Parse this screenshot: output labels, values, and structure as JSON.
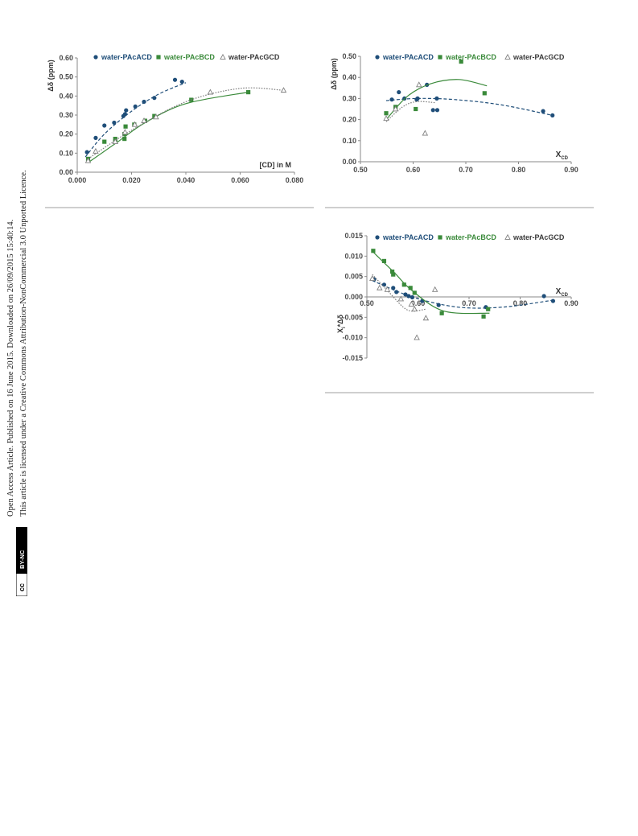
{
  "sidebar": {
    "line1": "Open Access Article. Published on 16 June 2015. Downloaded on 26/09/2015 15:40:14.",
    "line2": "This article is licensed under a Creative Commons Attribution-NonCommercial 3.0 Unported Licence.",
    "badge_cc": "cc",
    "badge_by": "BY-NC"
  },
  "colors": {
    "a": "#1f4e79",
    "b": "#3a8a3a",
    "g": "#7f7f7f",
    "tick": "#4a4a4a"
  },
  "chart_data": [
    {
      "type": "scatter",
      "xlabel": "[CD] in M",
      "ylabel": "Δδ (ppm)",
      "xlim": [
        0,
        0.08
      ],
      "ylim": [
        0,
        0.6
      ],
      "xticks": [
        "0.000",
        "0.020",
        "0.040",
        "0.060",
        "0.080"
      ],
      "yticks": [
        "0.00",
        "0.10",
        "0.20",
        "0.30",
        "0.40",
        "0.50",
        "0.60"
      ],
      "legend_position": "top",
      "series": [
        {
          "name": "water-PAcACD",
          "marker": "circle",
          "color": "#1f4e79",
          "fit": "dashed",
          "x": [
            0.0036,
            0.0068,
            0.01,
            0.0136,
            0.017,
            0.0176,
            0.018,
            0.0214,
            0.0246,
            0.0284,
            0.036,
            0.0386
          ],
          "y": [
            0.105,
            0.18,
            0.245,
            0.26,
            0.295,
            0.305,
            0.325,
            0.345,
            0.37,
            0.39,
            0.485,
            0.475
          ],
          "fit_points": [
            [
              0.003,
              0.08
            ],
            [
              0.01,
              0.2
            ],
            [
              0.02,
              0.32
            ],
            [
              0.03,
              0.41
            ],
            [
              0.04,
              0.47
            ]
          ]
        },
        {
          "name": "water-PAcBCD",
          "marker": "square",
          "color": "#3a8a3a",
          "fit": "solid",
          "x": [
            0.004,
            0.01,
            0.014,
            0.014,
            0.0174,
            0.0174,
            0.0178,
            0.021,
            0.025,
            0.0284,
            0.042,
            0.063
          ],
          "y": [
            0.07,
            0.16,
            0.16,
            0.175,
            0.175,
            0.2,
            0.24,
            0.25,
            0.27,
            0.295,
            0.38,
            0.42
          ],
          "fit_points": [
            [
              0.004,
              0.05
            ],
            [
              0.015,
              0.16
            ],
            [
              0.025,
              0.26
            ],
            [
              0.04,
              0.36
            ],
            [
              0.063,
              0.42
            ]
          ]
        },
        {
          "name": "water-PAcGCD",
          "marker": "triangle",
          "color": "#7f7f7f",
          "fit": "dotted",
          "x": [
            0.004,
            0.0068,
            0.014,
            0.0176,
            0.0212,
            0.0246,
            0.029,
            0.049,
            0.076
          ],
          "y": [
            0.06,
            0.11,
            0.16,
            0.21,
            0.25,
            0.27,
            0.29,
            0.42,
            0.43
          ],
          "fit_points": [
            [
              0.004,
              0.07
            ],
            [
              0.02,
              0.22
            ],
            [
              0.04,
              0.37
            ],
            [
              0.06,
              0.44
            ],
            [
              0.076,
              0.43
            ]
          ]
        }
      ]
    },
    {
      "type": "scatter",
      "xlabel": "X",
      "xlabel_sub": "CD",
      "ylabel": "Δδ (ppm)",
      "xlim": [
        0.5,
        0.95
      ],
      "ylim": [
        0,
        0.5
      ],
      "xticks": [
        "0.50",
        "0.60",
        "0.70",
        "0.80",
        "0.90"
      ],
      "yticks": [
        "0.00",
        "0.10",
        "0.20",
        "0.30",
        "0.40",
        "0.50"
      ],
      "legend_position": "top",
      "series": [
        {
          "name": "water-PAcACD",
          "marker": "circle",
          "color": "#1f4e79",
          "fit": "dashed",
          "x": [
            0.567,
            0.582,
            0.594,
            0.62,
            0.622,
            0.642,
            0.655,
            0.663,
            0.664,
            0.89,
            0.91
          ],
          "y": [
            0.295,
            0.33,
            0.3,
            0.295,
            0.3,
            0.365,
            0.245,
            0.3,
            0.245,
            0.24,
            0.22
          ],
          "fit_points": [
            [
              0.555,
              0.29
            ],
            [
              0.62,
              0.3
            ],
            [
              0.7,
              0.295
            ],
            [
              0.8,
              0.27
            ],
            [
              0.91,
              0.22
            ]
          ]
        },
        {
          "name": "water-PAcBCD",
          "marker": "square",
          "color": "#3a8a3a",
          "fit": "solid",
          "x": [
            0.555,
            0.575,
            0.618,
            0.715,
            0.765
          ],
          "y": [
            0.23,
            0.26,
            0.25,
            0.475,
            0.325
          ],
          "fit_points": [
            [
              0.555,
              0.2
            ],
            [
              0.6,
              0.31
            ],
            [
              0.65,
              0.37
            ],
            [
              0.71,
              0.39
            ],
            [
              0.77,
              0.36
            ]
          ]
        },
        {
          "name": "water-PAcGCD",
          "marker": "triangle",
          "color": "#7f7f7f",
          "fit": "dotted",
          "x": [
            0.555,
            0.575,
            0.625,
            0.638
          ],
          "y": [
            0.205,
            0.25,
            0.365,
            0.135
          ],
          "fit_points": [
            [
              0.555,
              0.19
            ],
            [
              0.59,
              0.26
            ],
            [
              0.62,
              0.285
            ],
            [
              0.66,
              0.28
            ]
          ]
        }
      ]
    },
    {
      "type": "scatter",
      "xlabel": "X",
      "xlabel_sub": "CD",
      "ylabel": "X*Δδ",
      "ylabel_sub": "i",
      "xlim": [
        0.5,
        0.95
      ],
      "ylim": [
        -0.015,
        0.015
      ],
      "xticks": [
        "0.50",
        "0.60",
        "0.70",
        "0.80",
        "0.90"
      ],
      "yticks": [
        "-0.015",
        "-0.010",
        "-0.005",
        "0.000",
        "0.005",
        "0.010",
        "0.015"
      ],
      "legend_position": "top",
      "series": [
        {
          "name": "water-PAcACD",
          "marker": "circle",
          "color": "#1f4e79",
          "fit": "dashed",
          "x": [
            0.516,
            0.538,
            0.558,
            0.565,
            0.585,
            0.592,
            0.6,
            0.622,
            0.658,
            0.762,
            0.89,
            0.91
          ],
          "y": [
            0.0043,
            0.003,
            0.0022,
            0.0012,
            0.0006,
            0.0002,
            -0.0001,
            -0.001,
            -0.002,
            -0.0025,
            0.0002,
            -0.001
          ],
          "fit_points": [
            [
              0.512,
              0.004
            ],
            [
              0.6,
              0.0
            ],
            [
              0.7,
              -0.0025
            ],
            [
              0.8,
              -0.0025
            ],
            [
              0.91,
              -0.0008
            ]
          ]
        },
        {
          "name": "water-PAcBCD",
          "marker": "square",
          "color": "#3a8a3a",
          "fit": "solid",
          "x": [
            0.514,
            0.538,
            0.556,
            0.558,
            0.582,
            0.596,
            0.605,
            0.665,
            0.757,
            0.767
          ],
          "y": [
            0.0113,
            0.0088,
            0.0062,
            0.0055,
            0.003,
            0.0022,
            0.001,
            -0.004,
            -0.0048,
            -0.003
          ],
          "fit_points": [
            [
              0.512,
              0.0112
            ],
            [
              0.56,
              0.006
            ],
            [
              0.6,
              0.0015
            ],
            [
              0.67,
              -0.0035
            ],
            [
              0.77,
              -0.004
            ]
          ]
        },
        {
          "name": "water-PAcGCD",
          "marker": "triangle",
          "color": "#7f7f7f",
          "fit": "dotted",
          "x": [
            0.512,
            0.528,
            0.545,
            0.575,
            0.598,
            0.605,
            0.61,
            0.63,
            0.65
          ],
          "y": [
            0.0045,
            0.0022,
            0.0018,
            -0.0005,
            -0.0018,
            -0.003,
            -0.01,
            -0.0052,
            0.0018
          ],
          "fit_points": [
            [
              0.512,
              0.0055
            ],
            [
              0.55,
              0.001
            ],
            [
              0.58,
              -0.0025
            ],
            [
              0.6,
              -0.0035
            ],
            [
              0.63,
              -0.003
            ]
          ]
        }
      ]
    }
  ]
}
